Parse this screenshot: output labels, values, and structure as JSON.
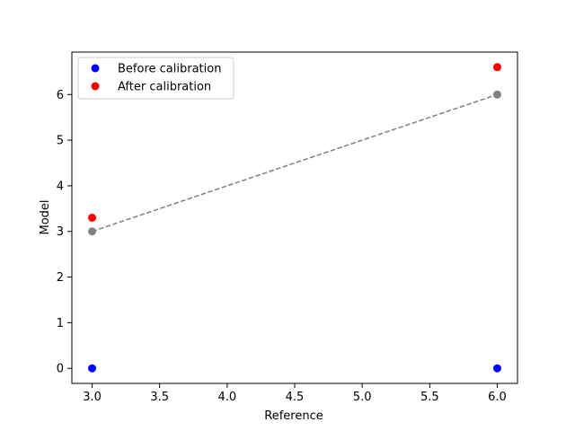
{
  "chart_data": {
    "type": "scatter",
    "title": "",
    "xlabel": "Reference",
    "ylabel": "Model",
    "xlim": [
      2.85,
      6.15
    ],
    "ylim": [
      -0.33,
      6.93
    ],
    "xticks": [
      3.0,
      3.5,
      4.0,
      4.5,
      5.0,
      5.5,
      6.0
    ],
    "xtick_labels": [
      "3.0",
      "3.5",
      "4.0",
      "4.5",
      "5.0",
      "5.5",
      "6.0"
    ],
    "yticks": [
      0,
      1,
      2,
      3,
      4,
      5,
      6
    ],
    "ytick_labels": [
      "0",
      "1",
      "2",
      "3",
      "4",
      "5",
      "6"
    ],
    "grid": false,
    "legend_position": "top-left",
    "series": [
      {
        "name": "Before calibration",
        "color": "#0000ff",
        "marker": "circle",
        "x": [
          3.0,
          6.0
        ],
        "y": [
          0.0,
          0.0
        ]
      },
      {
        "name": "After calibration",
        "color": "#ff0000",
        "marker": "circle",
        "x": [
          3.0,
          6.0
        ],
        "y": [
          3.3,
          6.6
        ]
      }
    ],
    "reference_line": {
      "color": "#808080",
      "style": "dashed",
      "marker": "circle",
      "x": [
        3.0,
        6.0
      ],
      "y": [
        3.0,
        6.0
      ]
    }
  }
}
